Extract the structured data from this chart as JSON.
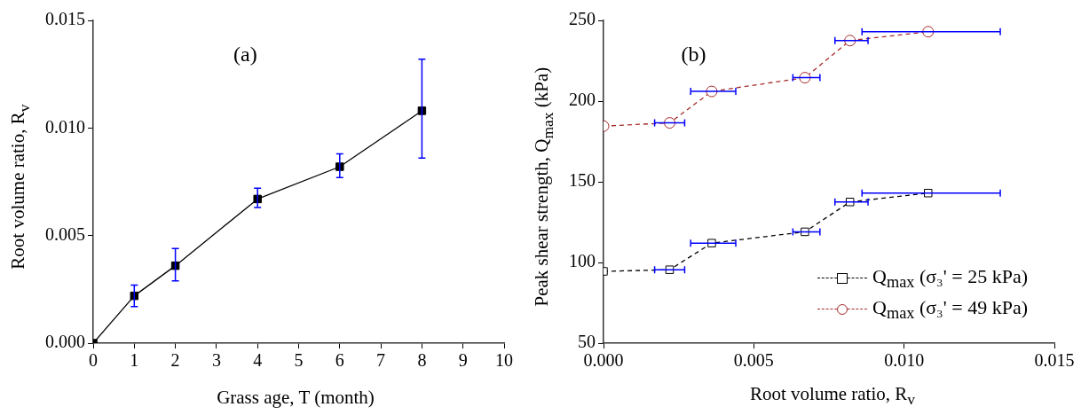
{
  "chart_data": [
    {
      "type": "line",
      "xlabel": "Grass age, T (month)",
      "ylabel": "Root volume  ratio, R$_{v}$",
      "annotations": [
        "(a)"
      ],
      "x": [
        0,
        1,
        2,
        4,
        6,
        8
      ],
      "series": [
        {
          "color": "#000000",
          "values": [
            0,
            0.0022,
            0.0036,
            0.0067,
            0.0082,
            0.0108
          ],
          "errors": [
            null,
            [
              0.0017,
              0.0027
            ],
            [
              0.0029,
              0.0044
            ],
            [
              0.0063,
              0.0072
            ],
            [
              0.0077,
              0.0088
            ],
            [
              0.0086,
              0.0132
            ]
          ]
        }
      ],
      "xlim": [
        0,
        10
      ],
      "xticks": [
        0,
        1,
        2,
        3,
        4,
        5,
        6,
        7,
        8,
        9,
        10
      ],
      "ylim": [
        0,
        0.015
      ],
      "yticks": [
        {
          "value": 0,
          "label": "0.000"
        },
        {
          "value": 0.005,
          "label": "0.005"
        },
        {
          "value": 0.01,
          "label": "0.010"
        },
        {
          "value": 0.015,
          "label": "0.015"
        }
      ],
      "grid": false,
      "legend": false,
      "marker": "square",
      "line_style": "solid"
    },
    {
      "type": "line",
      "xlabel": "Root volume ratio, R$_{v}$",
      "ylabel": "Peak shear strength, Q$_{max}$ (kPa)",
      "annotations": [
        "(b)"
      ],
      "x": [
        0,
        0.0022,
        0.0036,
        0.0067,
        0.0082,
        0.0108
      ],
      "series": [
        {
          "name": "Q$_{max}$ (σ₃' = 25 kPa)",
          "color": "#000000",
          "marker": "square",
          "values": [
            94.5,
            95.5,
            112,
            119,
            137.5,
            143
          ],
          "xerrors": [
            null,
            [
              0.0017,
              0.0027
            ],
            [
              0.0029,
              0.0044
            ],
            [
              0.0063,
              0.0072
            ],
            [
              0.0077,
              0.0088
            ],
            [
              0.0086,
              0.0132
            ]
          ]
        },
        {
          "name": "Q$_{max}$ (σ₃' = 49 kPa)",
          "color": "#a52a2a",
          "marker": "circle",
          "values": [
            184.5,
            186.5,
            206,
            214.5,
            237.5,
            243
          ],
          "xerrors": [
            null,
            [
              0.0017,
              0.0027
            ],
            [
              0.0029,
              0.0044
            ],
            [
              0.0063,
              0.0072
            ],
            [
              0.0077,
              0.0088
            ],
            [
              0.0086,
              0.0132
            ]
          ]
        }
      ],
      "xlim": [
        0,
        0.015
      ],
      "xticks": [
        {
          "value": 0,
          "label": "0.000"
        },
        {
          "value": 0.005,
          "label": "0.005"
        },
        {
          "value": 0.01,
          "label": "0.010"
        },
        {
          "value": 0.015,
          "label": "0.015"
        }
      ],
      "ylim": [
        50,
        250
      ],
      "yticks": [
        50,
        100,
        150,
        200,
        250
      ],
      "grid": false,
      "legend": "bottom right",
      "line_style": "dashed"
    }
  ]
}
